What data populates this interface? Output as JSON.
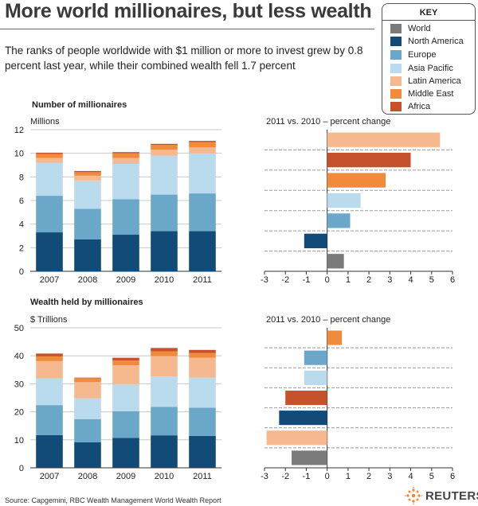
{
  "header": {
    "title": "More world millionaires, but less wealth",
    "subtitle": "The ranks of people worldwide with $1 million or more to invest grew by 0.8 percent last year, while their combined wealth fell 1.7 percent"
  },
  "key": {
    "title": "KEY",
    "items": [
      {
        "label": "World",
        "color": "#7a7a7a"
      },
      {
        "label": "North America",
        "color": "#124a78"
      },
      {
        "label": "Europe",
        "color": "#6aa7c8"
      },
      {
        "label": "Asia Pacific",
        "color": "#b9dbed"
      },
      {
        "label": "Latin America",
        "color": "#f6b88e"
      },
      {
        "label": "Middle East",
        "color": "#f08a3d"
      },
      {
        "label": "Africa",
        "color": "#c5522a"
      }
    ]
  },
  "chart_data": [
    {
      "type": "bar",
      "stacked": true,
      "title": "Number of millionaires",
      "ylabel": "Millions",
      "categories": [
        "2007",
        "2008",
        "2009",
        "2010",
        "2011"
      ],
      "ylim": [
        0,
        12
      ],
      "yticks": [
        0,
        2,
        4,
        6,
        8,
        10,
        12
      ],
      "series": [
        {
          "name": "North America",
          "values": [
            3.3,
            2.7,
            3.1,
            3.4,
            3.4
          ]
        },
        {
          "name": "Europe",
          "values": [
            3.1,
            2.6,
            3.0,
            3.1,
            3.2
          ]
        },
        {
          "name": "Asia Pacific",
          "values": [
            2.8,
            2.4,
            3.0,
            3.3,
            3.4
          ]
        },
        {
          "name": "Latin America",
          "values": [
            0.4,
            0.4,
            0.5,
            0.5,
            0.5
          ]
        },
        {
          "name": "Middle East",
          "values": [
            0.35,
            0.3,
            0.4,
            0.4,
            0.45
          ]
        },
        {
          "name": "Africa",
          "values": [
            0.1,
            0.1,
            0.1,
            0.1,
            0.1
          ]
        }
      ]
    },
    {
      "type": "bar",
      "orientation": "horizontal",
      "title": "2011 vs. 2010 – percent change",
      "xlim": [
        -3,
        6
      ],
      "xticks": [
        -3,
        -2,
        -1,
        0,
        1,
        2,
        3,
        4,
        5,
        6
      ],
      "categories": [
        "Latin America",
        "Africa",
        "Middle East",
        "Asia Pacific",
        "Europe",
        "North America",
        "World"
      ],
      "values": [
        5.4,
        4.0,
        2.8,
        1.6,
        1.1,
        -1.1,
        0.8
      ]
    },
    {
      "type": "bar",
      "stacked": true,
      "title": "Wealth held by millionaires",
      "ylabel": "$ Trillions",
      "categories": [
        "2007",
        "2008",
        "2009",
        "2010",
        "2011"
      ],
      "ylim": [
        0,
        50
      ],
      "yticks": [
        0,
        10,
        20,
        30,
        40,
        50
      ],
      "series": [
        {
          "name": "North America",
          "values": [
            11.7,
            9.1,
            10.7,
            11.6,
            11.4
          ]
        },
        {
          "name": "Europe",
          "values": [
            10.7,
            8.3,
            9.5,
            10.2,
            10.1
          ]
        },
        {
          "name": "Asia Pacific",
          "values": [
            9.5,
            7.4,
            9.7,
            10.8,
            10.7
          ]
        },
        {
          "name": "Latin America",
          "values": [
            6.2,
            5.8,
            6.7,
            7.3,
            7.1
          ]
        },
        {
          "name": "Middle East",
          "values": [
            1.7,
            1.4,
            1.7,
            1.7,
            1.7
          ]
        },
        {
          "name": "Africa",
          "values": [
            1.0,
            0.2,
            1.0,
            1.2,
            1.1
          ]
        }
      ]
    },
    {
      "type": "bar",
      "orientation": "horizontal",
      "title": "2011 vs. 2010 – percent change",
      "xlim": [
        -3,
        6
      ],
      "xticks": [
        -3,
        -2,
        -1,
        0,
        1,
        2,
        3,
        4,
        5,
        6
      ],
      "categories": [
        "Middle East",
        "Europe",
        "Asia Pacific",
        "Africa",
        "North America",
        "Latin America",
        "World"
      ],
      "values": [
        0.7,
        -1.1,
        -1.1,
        -2.0,
        -2.3,
        -2.9,
        -1.7
      ]
    }
  ],
  "footer": {
    "source": "Source: Capgemini, RBC Wealth Management World Wealth Report",
    "brand": "REUTERS"
  }
}
